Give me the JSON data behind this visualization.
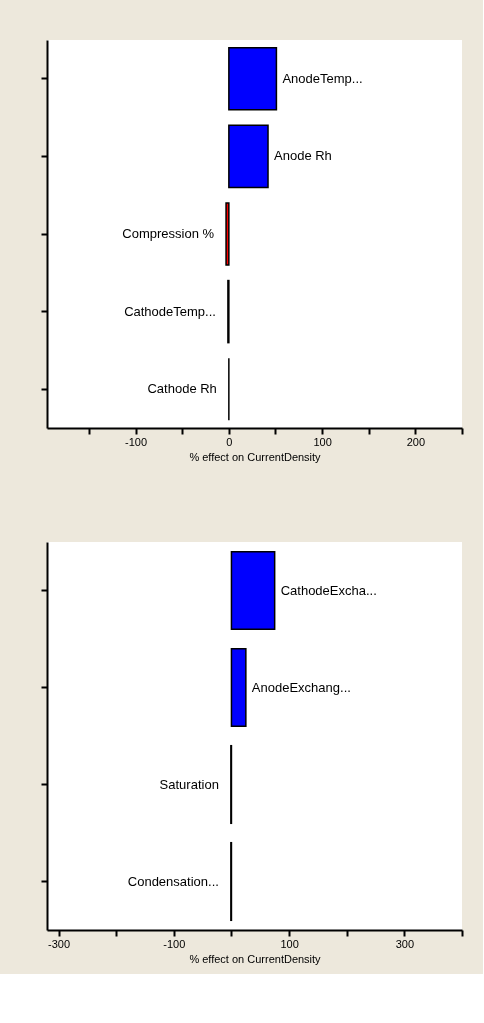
{
  "chart_data": [
    {
      "type": "bar",
      "orientation": "horizontal",
      "categories": [
        "AnodeTemp...",
        "Anode Rh",
        "Compression  %",
        "CathodeTemp...",
        "Cathode Rh"
      ],
      "values": [
        51,
        42,
        -3,
        -1,
        0
      ],
      "colors": [
        "#0000ff",
        "#0000ff",
        "#ff0000",
        "#000000",
        "#000000"
      ],
      "xlim": [
        -195,
        250
      ],
      "xticks": [
        {
          "value": -150,
          "label": null
        },
        -100,
        {
          "value": -50,
          "label": null
        },
        0,
        {
          "value": 50,
          "label": null
        },
        100,
        {
          "value": 150,
          "label": null
        },
        200,
        {
          "value": 250,
          "label": null
        }
      ],
      "xlabel": "% effect on CurrentDensity",
      "tick_labels": "x"
    },
    {
      "type": "bar",
      "orientation": "horizontal",
      "categories": [
        "CathodeExcha...",
        "AnodeExchang...",
        "Saturation",
        "Condensation..."
      ],
      "values": [
        75,
        25,
        -1,
        -1
      ],
      "colors": [
        "#0000ff",
        "#0000ff",
        "#000000",
        "#000000"
      ],
      "xlim": [
        -320,
        400
      ],
      "xticks": [
        -300,
        {
          "value": -200,
          "label": null
        },
        -100,
        {
          "value": 0,
          "label": null
        },
        100,
        {
          "value": 200,
          "label": null
        },
        300,
        {
          "value": 400,
          "label": null
        }
      ],
      "xlabel": "% effect on CurrentDensity",
      "tick_labels": "x"
    }
  ]
}
